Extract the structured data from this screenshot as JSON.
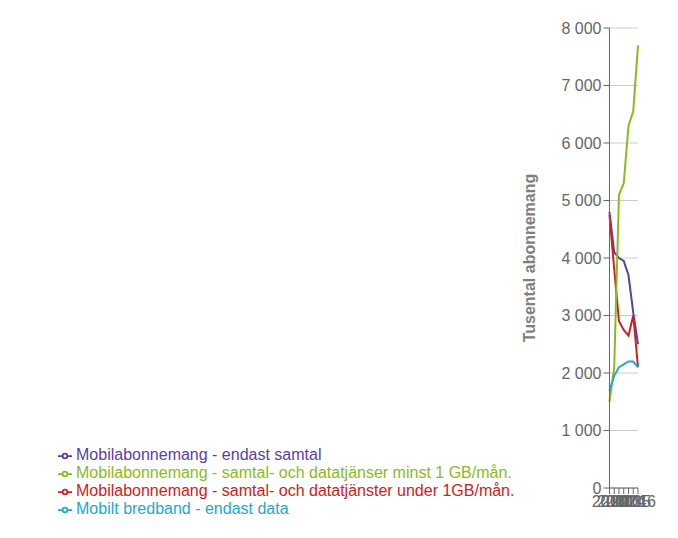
{
  "chart_data": {
    "type": "line",
    "categories": [
      "2010",
      "2011",
      "2012",
      "2013",
      "2014",
      "2015",
      "2016"
    ],
    "series": [
      {
        "name": "Mobilabonnemang - endast samtal",
        "color": "#5b3f9e",
        "values": [
          4800,
          4100,
          4000,
          3950,
          3700,
          3050,
          2500
        ]
      },
      {
        "name": "Mobilabonnemang - samtal- och datatjänster under 1GB/mån.",
        "color": "#cc2222",
        "values": [
          4750,
          3800,
          2900,
          2750,
          2650,
          3000,
          2100
        ]
      },
      {
        "name": "Mobilabonnemang - samtal- och datatjänser minst 1 GB/mån.",
        "color": "#88bb22",
        "values": [
          1500,
          2100,
          5100,
          5300,
          6300,
          6550,
          7700
        ]
      },
      {
        "name": "Mobilt bredband - endast data",
        "color": "#22aacc",
        "values": [
          1700,
          1950,
          2100,
          2150,
          2200,
          2200,
          2100
        ]
      }
    ],
    "ylabel": "Tusental abonnemang",
    "ylim": [
      0,
      8000
    ],
    "yticks": [
      0,
      {
        "value": 1000,
        "label": "1 000"
      },
      {
        "value": 2000,
        "label": "2 000"
      },
      {
        "value": 3000,
        "label": "3 000"
      },
      {
        "value": 4000,
        "label": "4 000"
      },
      {
        "value": 5000,
        "label": "5 000"
      },
      {
        "value": 6000,
        "label": "6 000"
      },
      {
        "value": 7000,
        "label": "7 000"
      },
      {
        "value": 8000,
        "label": "8 000"
      }
    ],
    "grid": true,
    "legend": "lower left"
  }
}
